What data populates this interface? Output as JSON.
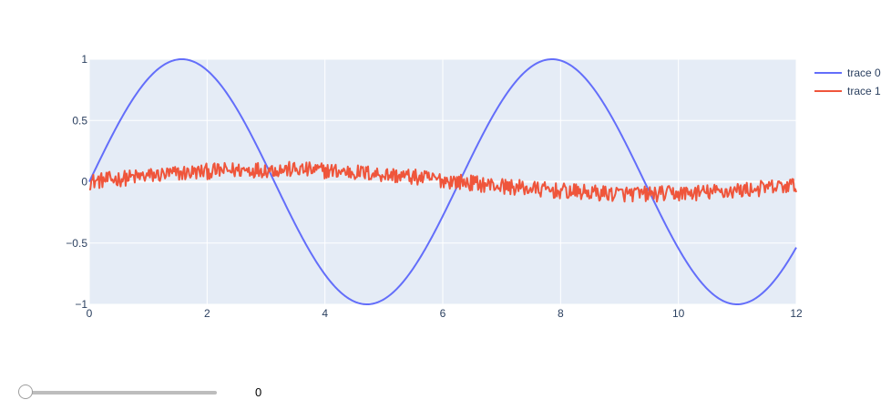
{
  "chart_data": {
    "type": "line",
    "title": "",
    "xlabel": "",
    "ylabel": "",
    "xlim": [
      0,
      12
    ],
    "ylim": [
      -1,
      1
    ],
    "x_ticks": [
      "0",
      "2",
      "4",
      "6",
      "8",
      "10",
      "12"
    ],
    "y_ticks": [
      "1",
      "0.5",
      "0",
      "−0.5",
      "−1"
    ],
    "grid": true,
    "legend_position": "top-right",
    "series": [
      {
        "name": "trace 0",
        "color": "#636efa",
        "function": "sin(x)",
        "x": [
          0,
          1,
          2,
          3,
          3.14,
          4,
          5,
          6,
          7,
          8,
          9,
          10,
          11,
          12
        ],
        "y": [
          0,
          0.84,
          0.91,
          0.14,
          0,
          -0.76,
          -0.96,
          -0.28,
          0.66,
          0.99,
          0.41,
          -0.54,
          -1.0,
          -0.54
        ]
      },
      {
        "name": "trace 1",
        "color": "#ef553b",
        "function": "0.1*sin(x/2) + noise",
        "noise_amplitude": 0.05,
        "x": [
          0,
          1,
          2,
          3,
          4,
          5,
          6,
          7,
          8,
          9,
          10,
          11,
          12
        ],
        "y": [
          0.0,
          0.05,
          0.08,
          0.1,
          0.09,
          0.06,
          0.01,
          -0.04,
          -0.08,
          -0.1,
          -0.1,
          -0.07,
          -0.03
        ]
      }
    ]
  },
  "slider": {
    "value": "0"
  }
}
